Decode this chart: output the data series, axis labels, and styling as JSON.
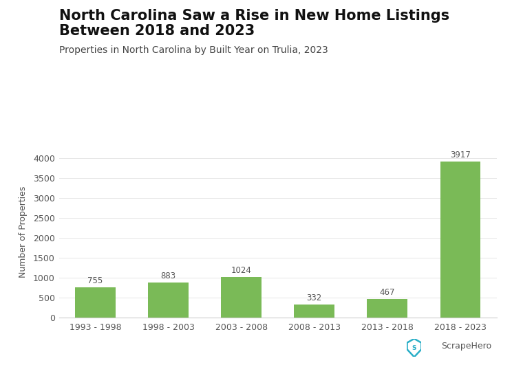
{
  "categories": [
    "1993 - 1998",
    "1998 - 2003",
    "2003 - 2008",
    "2008 - 2013",
    "2013 - 2018",
    "2018 - 2023"
  ],
  "values": [
    755,
    883,
    1024,
    332,
    467,
    3917
  ],
  "bar_color": "#7aba57",
  "title_line1": "North Carolina Saw a Rise in New Home Listings",
  "title_line2": "Between 2018 and 2023",
  "subtitle": "Properties in North Carolina by Built Year on Trulia, 2023",
  "ylabel": "Number of Properties",
  "ylim": [
    0,
    4300
  ],
  "yticks": [
    0,
    500,
    1000,
    1500,
    2000,
    2500,
    3000,
    3500,
    4000
  ],
  "title_fontsize": 15,
  "subtitle_fontsize": 10,
  "ylabel_fontsize": 9,
  "tick_fontsize": 9,
  "label_fontsize": 8.5,
  "background_color": "#ffffff",
  "bar_width": 0.55,
  "logo_text": "ScrapeHero",
  "logo_color": "#29aec7"
}
